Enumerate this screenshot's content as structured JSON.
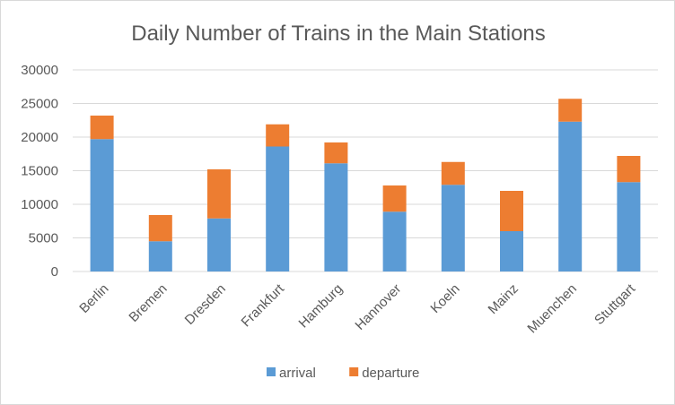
{
  "chart_data": {
    "type": "bar",
    "stacked": true,
    "title": "Daily Number of Trains in the Main Stations",
    "xlabel": "",
    "ylabel": "",
    "categories": [
      "Berlin",
      "Bremen",
      "Dresden",
      "Frankfurt",
      "Hamburg",
      "Hannover",
      "Koeln",
      "Mainz",
      "Muenchen",
      "Stuttgart"
    ],
    "series": [
      {
        "name": "arrival",
        "color": "#5b9bd5",
        "values": [
          19700,
          4500,
          7900,
          18600,
          16100,
          8900,
          12900,
          6000,
          22300,
          13300
        ]
      },
      {
        "name": "departure",
        "color": "#ed7d31",
        "values": [
          3500,
          3900,
          7300,
          3300,
          3100,
          3900,
          3400,
          6000,
          3400,
          3900
        ]
      }
    ],
    "ylim": [
      0,
      30000
    ],
    "yticks": [
      "0",
      "5000",
      "10000",
      "15000",
      "20000",
      "25000",
      "30000"
    ],
    "grid": true,
    "legend_position": "bottom"
  }
}
